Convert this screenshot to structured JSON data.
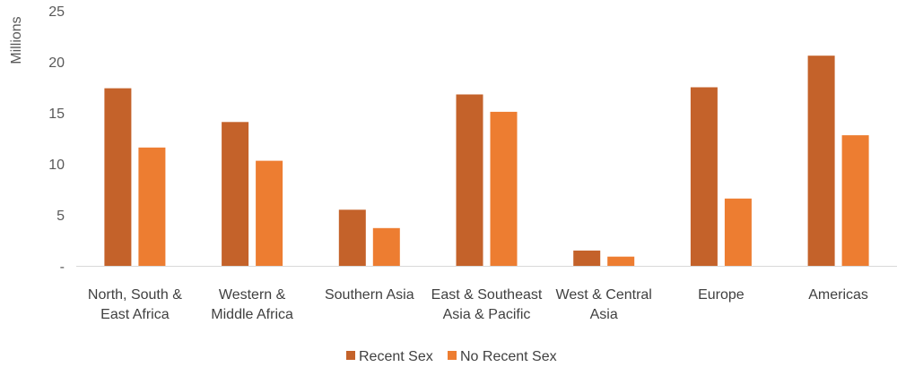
{
  "chart_data": {
    "type": "bar",
    "ylabel": "Millions",
    "ylim": [
      0,
      25
    ],
    "yticks": [
      {
        "value": 0,
        "label": "-"
      },
      {
        "value": 5,
        "label": "5"
      },
      {
        "value": 10,
        "label": "10"
      },
      {
        "value": 15,
        "label": "15"
      },
      {
        "value": 20,
        "label": "20"
      },
      {
        "value": 25,
        "label": "25"
      }
    ],
    "categories": [
      [
        "North, South &",
        "East Africa"
      ],
      [
        "Western &",
        "Middle Africa"
      ],
      [
        "Southern Asia"
      ],
      [
        "East & Southeast",
        "Asia & Pacific"
      ],
      [
        "West & Central",
        "Asia"
      ],
      [
        "Europe"
      ],
      [
        "Americas"
      ]
    ],
    "series": [
      {
        "name": "Recent Sex",
        "color": "#C4622A",
        "values": [
          17.4,
          14.1,
          5.5,
          16.8,
          1.5,
          17.5,
          20.6
        ]
      },
      {
        "name": "No Recent Sex",
        "color": "#ED7D31",
        "values": [
          11.6,
          10.3,
          3.7,
          15.1,
          0.9,
          6.6,
          12.8
        ]
      }
    ],
    "legend_position": "bottom",
    "grid": false
  }
}
